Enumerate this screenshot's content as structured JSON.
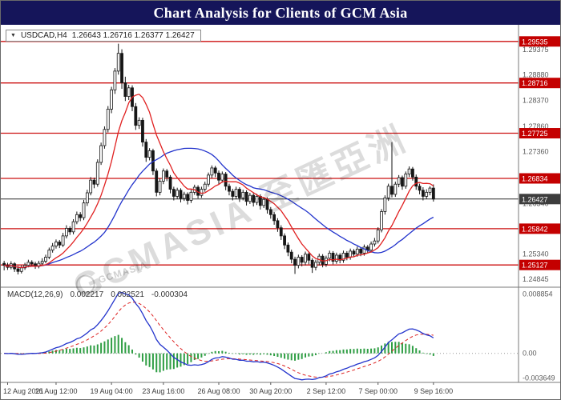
{
  "header": {
    "title": "Chart Analysis for Clients of GCM Asia"
  },
  "symbol_bar": {
    "arrow_icon": "▼",
    "symbol": "USDCAD,H4",
    "ohlc": "1.26643 1.26716 1.26377 1.26427"
  },
  "watermark": {
    "brand": "GCMASIA",
    "cjk": "至匯亞洲"
  },
  "colors": {
    "header_bg": "#15155a",
    "line_red": "#cc1111",
    "badge_red": "#c40000",
    "badge_current": "#3d3d3d",
    "ma_fast": "#e02020",
    "ma_slow": "#2233cc",
    "macd_line": "#2233cc",
    "macd_signal": "#dd2222",
    "macd_hist": "#2f9e44",
    "candle_stroke": "#161616",
    "candle_up_fill": "#ffffff",
    "candle_down_fill": "#161616",
    "axis_text": "#5a5a5a",
    "grid": "#9a9a9a"
  },
  "chart_data": {
    "type": "candlestick",
    "title": "USDCAD,H4",
    "ylim": [
      1.2472,
      1.298
    ],
    "price_grid_labels": [
      1.29375,
      1.2888,
      1.2837,
      1.2786,
      1.2736,
      1.2685,
      1.2634,
      1.2583,
      1.2534,
      1.24845
    ],
    "hlines": [
      1.29535,
      1.28716,
      1.27725,
      1.26834,
      1.25842,
      1.25127
    ],
    "current_price": 1.26427,
    "overlays": [
      {
        "name": "moving-average-fast",
        "color": "red"
      },
      {
        "name": "moving-average-slow",
        "color": "blue"
      }
    ],
    "candles": [
      [
        1.2516,
        1.2521,
        1.2502,
        1.2512
      ],
      [
        1.2512,
        1.2517,
        1.2503,
        1.2508
      ],
      [
        1.2508,
        1.252,
        1.2504,
        1.2515
      ],
      [
        1.2515,
        1.2518,
        1.2499,
        1.2505
      ],
      [
        1.2505,
        1.2511,
        1.2494,
        1.25
      ],
      [
        1.25,
        1.2512,
        1.2496,
        1.2507
      ],
      [
        1.2507,
        1.2517,
        1.2503,
        1.2512
      ],
      [
        1.2512,
        1.2523,
        1.2508,
        1.2518
      ],
      [
        1.2518,
        1.2522,
        1.251,
        1.2515
      ],
      [
        1.2515,
        1.2519,
        1.2505,
        1.251
      ],
      [
        1.251,
        1.2521,
        1.2506,
        1.2516
      ],
      [
        1.2516,
        1.2526,
        1.2512,
        1.252
      ],
      [
        1.252,
        1.2533,
        1.2516,
        1.2528
      ],
      [
        1.2528,
        1.2547,
        1.2524,
        1.2542
      ],
      [
        1.2542,
        1.2556,
        1.2537,
        1.255
      ],
      [
        1.255,
        1.2563,
        1.2545,
        1.2558
      ],
      [
        1.2558,
        1.2562,
        1.2546,
        1.2552
      ],
      [
        1.2552,
        1.2576,
        1.2548,
        1.257
      ],
      [
        1.257,
        1.2591,
        1.2565,
        1.2585
      ],
      [
        1.2585,
        1.2589,
        1.2572,
        1.2578
      ],
      [
        1.2578,
        1.2603,
        1.2573,
        1.2598
      ],
      [
        1.2598,
        1.2618,
        1.2593,
        1.2612
      ],
      [
        1.2612,
        1.2617,
        1.2599,
        1.2606
      ],
      [
        1.2606,
        1.2641,
        1.2601,
        1.2635
      ],
      [
        1.2635,
        1.2661,
        1.2629,
        1.2655
      ],
      [
        1.2655,
        1.2686,
        1.265,
        1.268
      ],
      [
        1.268,
        1.2685,
        1.2664,
        1.2672
      ],
      [
        1.2672,
        1.2721,
        1.2667,
        1.2715
      ],
      [
        1.2715,
        1.2754,
        1.271,
        1.2748
      ],
      [
        1.2748,
        1.2786,
        1.2742,
        1.278
      ],
      [
        1.278,
        1.2826,
        1.2774,
        1.282
      ],
      [
        1.282,
        1.2864,
        1.2812,
        1.2858
      ],
      [
        1.2858,
        1.2901,
        1.285,
        1.2895
      ],
      [
        1.2895,
        1.2949,
        1.2888,
        1.293
      ],
      [
        1.293,
        1.2938,
        1.286,
        1.2872
      ],
      [
        1.2872,
        1.2884,
        1.2836,
        1.2845
      ],
      [
        1.2845,
        1.2868,
        1.2838,
        1.2862
      ],
      [
        1.2862,
        1.2867,
        1.2816,
        1.2825
      ],
      [
        1.2825,
        1.2832,
        1.2779,
        1.2788
      ],
      [
        1.2788,
        1.2804,
        1.2781,
        1.2798
      ],
      [
        1.2798,
        1.2803,
        1.2746,
        1.2755
      ],
      [
        1.2755,
        1.2761,
        1.2716,
        1.2725
      ],
      [
        1.2725,
        1.2743,
        1.2719,
        1.2738
      ],
      [
        1.2738,
        1.2742,
        1.269,
        1.2698
      ],
      [
        1.2698,
        1.2703,
        1.2648,
        1.2656
      ],
      [
        1.2656,
        1.2683,
        1.265,
        1.2678
      ],
      [
        1.2678,
        1.2703,
        1.2672,
        1.2698
      ],
      [
        1.2698,
        1.2702,
        1.2678,
        1.2686
      ],
      [
        1.2686,
        1.269,
        1.2654,
        1.2662
      ],
      [
        1.2662,
        1.2667,
        1.264,
        1.2648
      ],
      [
        1.2648,
        1.2665,
        1.2643,
        1.266
      ],
      [
        1.266,
        1.2664,
        1.2636,
        1.2644
      ],
      [
        1.2644,
        1.2657,
        1.2639,
        1.2652
      ],
      [
        1.2652,
        1.2656,
        1.2632,
        1.264
      ],
      [
        1.264,
        1.2661,
        1.2635,
        1.2656
      ],
      [
        1.2656,
        1.2671,
        1.2651,
        1.2666
      ],
      [
        1.2666,
        1.267,
        1.2644,
        1.265
      ],
      [
        1.265,
        1.2667,
        1.2645,
        1.2662
      ],
      [
        1.2662,
        1.2677,
        1.2657,
        1.2672
      ],
      [
        1.2672,
        1.2695,
        1.2667,
        1.269
      ],
      [
        1.269,
        1.2709,
        1.2684,
        1.2704
      ],
      [
        1.2704,
        1.2708,
        1.2686,
        1.2694
      ],
      [
        1.2694,
        1.2699,
        1.2672,
        1.268
      ],
      [
        1.268,
        1.2697,
        1.2675,
        1.2692
      ],
      [
        1.2692,
        1.2696,
        1.266,
        1.2668
      ],
      [
        1.2668,
        1.2673,
        1.265,
        1.2658
      ],
      [
        1.2658,
        1.2663,
        1.264,
        1.2648
      ],
      [
        1.2648,
        1.2667,
        1.2643,
        1.2662
      ],
      [
        1.2662,
        1.2666,
        1.2637,
        1.2645
      ],
      [
        1.2645,
        1.2661,
        1.264,
        1.2656
      ],
      [
        1.2656,
        1.266,
        1.263,
        1.2638
      ],
      [
        1.2638,
        1.2655,
        1.2633,
        1.265
      ],
      [
        1.265,
        1.2654,
        1.2628,
        1.2636
      ],
      [
        1.2636,
        1.2653,
        1.2631,
        1.2648
      ],
      [
        1.2648,
        1.2652,
        1.2622,
        1.263
      ],
      [
        1.263,
        1.2647,
        1.2625,
        1.2642
      ],
      [
        1.2642,
        1.2646,
        1.2614,
        1.2622
      ],
      [
        1.2622,
        1.2627,
        1.2604,
        1.2612
      ],
      [
        1.2612,
        1.2617,
        1.2592,
        1.26
      ],
      [
        1.26,
        1.2605,
        1.2578,
        1.2586
      ],
      [
        1.2586,
        1.2591,
        1.2562,
        1.257
      ],
      [
        1.257,
        1.2575,
        1.2544,
        1.2552
      ],
      [
        1.2552,
        1.2557,
        1.253,
        1.2538
      ],
      [
        1.2538,
        1.2543,
        1.2516,
        1.2524
      ],
      [
        1.2524,
        1.2529,
        1.2495,
        1.2512
      ],
      [
        1.2512,
        1.2533,
        1.2506,
        1.2528
      ],
      [
        1.2528,
        1.2532,
        1.251,
        1.2518
      ],
      [
        1.2518,
        1.2539,
        1.2512,
        1.2534
      ],
      [
        1.2534,
        1.2538,
        1.2514,
        1.2522
      ],
      [
        1.2522,
        1.2526,
        1.2497,
        1.2508
      ],
      [
        1.2508,
        1.2523,
        1.2502,
        1.2518
      ],
      [
        1.2518,
        1.2535,
        1.2512,
        1.253
      ],
      [
        1.253,
        1.2534,
        1.2508,
        1.2514
      ],
      [
        1.2514,
        1.2531,
        1.2509,
        1.2526
      ],
      [
        1.2526,
        1.2541,
        1.252,
        1.2536
      ],
      [
        1.2536,
        1.254,
        1.2514,
        1.252
      ],
      [
        1.252,
        1.2537,
        1.2515,
        1.2532
      ],
      [
        1.2532,
        1.2536,
        1.2516,
        1.2522
      ],
      [
        1.2522,
        1.2541,
        1.2517,
        1.2536
      ],
      [
        1.2536,
        1.254,
        1.2522,
        1.2528
      ],
      [
        1.2528,
        1.2545,
        1.2523,
        1.254
      ],
      [
        1.254,
        1.2544,
        1.2528,
        1.2534
      ],
      [
        1.2534,
        1.2549,
        1.2529,
        1.2544
      ],
      [
        1.2544,
        1.2548,
        1.253,
        1.2536
      ],
      [
        1.2536,
        1.2553,
        1.2531,
        1.2548
      ],
      [
        1.2548,
        1.2552,
        1.2536,
        1.2542
      ],
      [
        1.2542,
        1.2559,
        1.2537,
        1.2554
      ],
      [
        1.2554,
        1.2566,
        1.2549,
        1.256
      ],
      [
        1.256,
        1.2587,
        1.2555,
        1.2582
      ],
      [
        1.2582,
        1.2623,
        1.2577,
        1.2618
      ],
      [
        1.2618,
        1.265,
        1.2612,
        1.2645
      ],
      [
        1.2645,
        1.2673,
        1.2639,
        1.2668
      ],
      [
        1.2668,
        1.2755,
        1.2646,
        1.2652
      ],
      [
        1.2652,
        1.2677,
        1.2647,
        1.2672
      ],
      [
        1.2672,
        1.269,
        1.2666,
        1.2685
      ],
      [
        1.2685,
        1.2689,
        1.2661,
        1.2668
      ],
      [
        1.2668,
        1.2697,
        1.2663,
        1.2692
      ],
      [
        1.2692,
        1.2707,
        1.2686,
        1.2702
      ],
      [
        1.2702,
        1.2706,
        1.2679,
        1.2686
      ],
      [
        1.2686,
        1.2691,
        1.2661,
        1.2668
      ],
      [
        1.2668,
        1.2673,
        1.2652,
        1.266
      ],
      [
        1.266,
        1.2666,
        1.264,
        1.2648
      ],
      [
        1.2648,
        1.2662,
        1.2643,
        1.2656
      ],
      [
        1.2656,
        1.2668,
        1.265,
        1.26643
      ],
      [
        1.26643,
        1.26716,
        1.26377,
        1.26427
      ]
    ],
    "time_ticks": [
      {
        "label": "12 Aug 2021",
        "bar": 1
      },
      {
        "label": "16 Aug 12:00",
        "bar": 15
      },
      {
        "label": "19 Aug 04:00",
        "bar": 31
      },
      {
        "label": "23 Aug 16:00",
        "bar": 46
      },
      {
        "label": "26 Aug 08:00",
        "bar": 62
      },
      {
        "label": "30 Aug 20:00",
        "bar": 77
      },
      {
        "label": "2 Sep 12:00",
        "bar": 93
      },
      {
        "label": "7 Sep 00:00",
        "bar": 108
      },
      {
        "label": "9 Sep 16:00",
        "bar": 124
      }
    ],
    "macd": {
      "label": "MACD(12,26,9)",
      "values": [
        "0.002217",
        "0.002521",
        "-0.000304"
      ],
      "params": [
        12,
        26,
        9
      ],
      "ylim": [
        -0.0042,
        0.0096
      ],
      "axis_labels": [
        {
          "label": "0.008854",
          "value": 0.008854
        },
        {
          "label": "0.00",
          "value": 0
        },
        {
          "label": "-0.003649",
          "value": -0.003649
        }
      ]
    }
  }
}
